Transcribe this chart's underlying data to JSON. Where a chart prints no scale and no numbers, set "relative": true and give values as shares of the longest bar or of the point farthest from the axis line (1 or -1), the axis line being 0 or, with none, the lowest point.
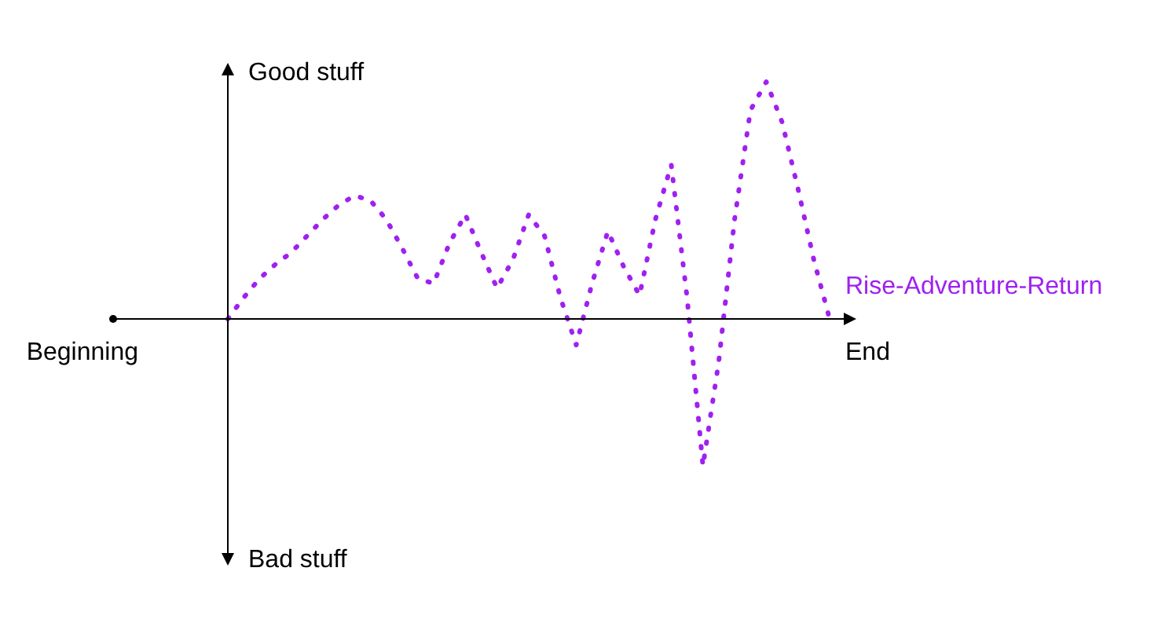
{
  "chart_data": {
    "type": "line",
    "relative": true,
    "categories": [
      null,
      null,
      null,
      null,
      null,
      null,
      null,
      null,
      null,
      null,
      null,
      null,
      null,
      null,
      null,
      null,
      null,
      null,
      null,
      null,
      null,
      null,
      null,
      null,
      null,
      null,
      null,
      null,
      null,
      null,
      null,
      null,
      null,
      null,
      null,
      null,
      null,
      null,
      null
    ],
    "series": [
      {
        "name": "Rise-Adventure-Return",
        "color": "#a020f0",
        "values": [
          0,
          0.09,
          0.17,
          0.23,
          0.28,
          0.35,
          0.42,
          0.48,
          0.52,
          0.5,
          0.42,
          0.3,
          0.17,
          0.15,
          0.32,
          0.44,
          0.28,
          0.13,
          0.25,
          0.44,
          0.35,
          0.09,
          -0.11,
          0.15,
          0.37,
          0.22,
          0.1,
          0.42,
          0.65,
          0.09,
          -0.62,
          -0.18,
          0.42,
          0.88,
          1,
          0.83,
          0.55,
          0.25,
          0
        ]
      }
    ],
    "annotations": [
      "Good stuff",
      "Bad stuff",
      "Beginning",
      "End"
    ],
    "line_style": "dotted",
    "marker": "none",
    "legend": false,
    "grid": false
  }
}
